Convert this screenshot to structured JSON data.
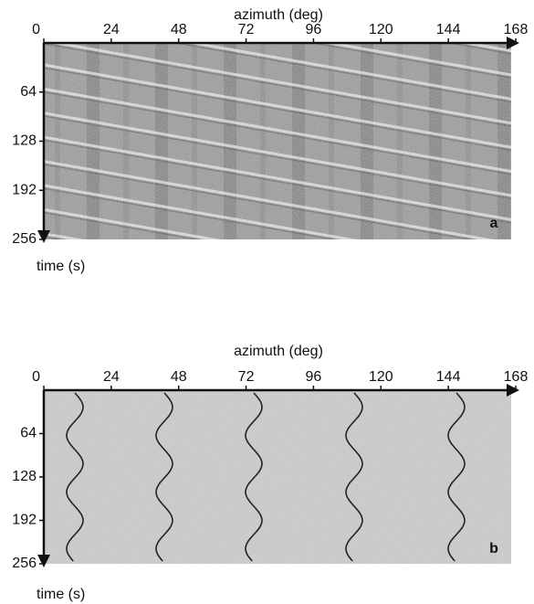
{
  "chart_data": [
    {
      "type": "image",
      "title": "azimuth (deg)",
      "ylabel": "time (s)",
      "panel": "a",
      "xlim": [
        0,
        168
      ],
      "ylim": [
        0,
        256
      ],
      "xticks": [
        0,
        24,
        48,
        72,
        96,
        120,
        144,
        168
      ],
      "yticks": [
        64,
        128,
        192,
        256
      ]
    },
    {
      "type": "image",
      "title": "azimuth (deg)",
      "ylabel": "time (s)",
      "panel": "b",
      "xlim": [
        0,
        168
      ],
      "ylim": [
        0,
        256
      ],
      "xticks": [
        0,
        24,
        48,
        72,
        96,
        120,
        144,
        168
      ],
      "yticks": [
        64,
        128,
        192,
        256
      ]
    }
  ]
}
